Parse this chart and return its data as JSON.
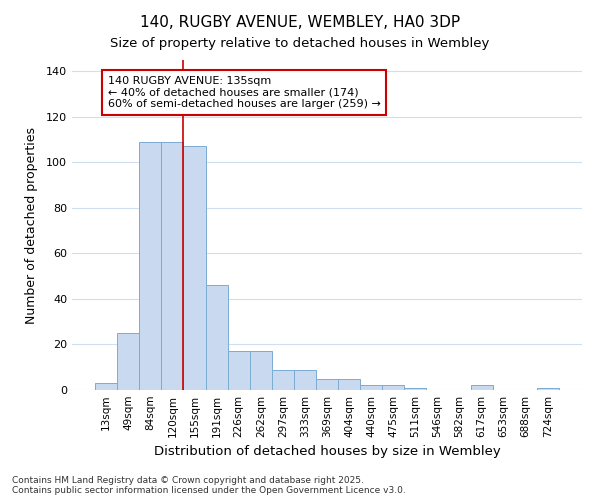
{
  "title": "140, RUGBY AVENUE, WEMBLEY, HA0 3DP",
  "subtitle": "Size of property relative to detached houses in Wembley",
  "xlabel": "Distribution of detached houses by size in Wembley",
  "ylabel": "Number of detached properties",
  "categories": [
    "13sqm",
    "49sqm",
    "84sqm",
    "120sqm",
    "155sqm",
    "191sqm",
    "226sqm",
    "262sqm",
    "297sqm",
    "333sqm",
    "369sqm",
    "404sqm",
    "440sqm",
    "475sqm",
    "511sqm",
    "546sqm",
    "582sqm",
    "617sqm",
    "653sqm",
    "688sqm",
    "724sqm"
  ],
  "values": [
    3,
    25,
    109,
    109,
    107,
    46,
    17,
    17,
    9,
    9,
    5,
    5,
    2,
    2,
    1,
    0,
    0,
    2,
    0,
    0,
    1
  ],
  "bar_color": "#c8d9f0",
  "bar_edge_color": "#7aacd4",
  "background_color": "#ffffff",
  "grid_color": "#d0dff0",
  "annotation_text": "140 RUGBY AVENUE: 135sqm\n← 40% of detached houses are smaller (174)\n60% of semi-detached houses are larger (259) →",
  "annotation_box_color": "#ffffff",
  "annotation_border_color": "#cc0000",
  "red_line_x": 3.5,
  "ylim": [
    0,
    145
  ],
  "yticks": [
    0,
    20,
    40,
    60,
    80,
    100,
    120,
    140
  ],
  "footnote1": "Contains HM Land Registry data © Crown copyright and database right 2025.",
  "footnote2": "Contains public sector information licensed under the Open Government Licence v3.0."
}
